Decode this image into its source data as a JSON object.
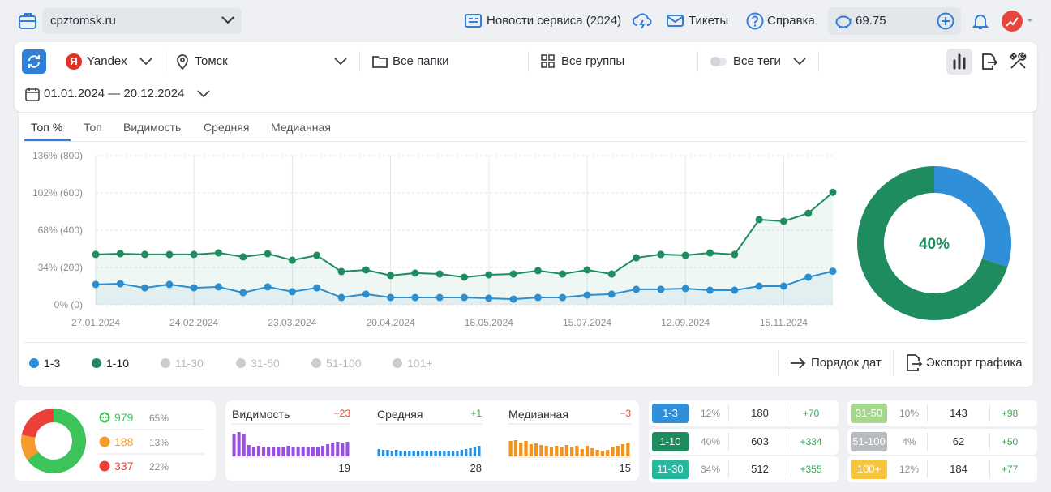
{
  "header": {
    "site": "cpztomsk.ru",
    "news": "Новости сервиса (2024)",
    "tickets": "Тикеты",
    "help": "Справка",
    "balance": "69.75"
  },
  "filters": {
    "engine_icon": "Я",
    "engine": "Yandex",
    "region": "Томск",
    "folders": "Все папки",
    "groups": "Все группы",
    "tags": "Все теги",
    "period": "01.01.2024 — 20.12.2024"
  },
  "tabs": [
    "Топ %",
    "Топ",
    "Видимость",
    "Средняя",
    "Медианная"
  ],
  "chart_data": {
    "type": "line",
    "categories": [
      "27.01.2024",
      null,
      null,
      null,
      "24.02.2024",
      null,
      null,
      null,
      "23.03.2024",
      null,
      null,
      null,
      "20.04.2024",
      null,
      null,
      null,
      "18.05.2024",
      null,
      null,
      null,
      "15.07.2024",
      null,
      null,
      null,
      "12.09.2024",
      null,
      null,
      null,
      "15.11.2024",
      null,
      null
    ],
    "series": [
      {
        "name": "1-3",
        "color": "#2f8fd8",
        "values": [
          109,
          113,
          91,
          109,
          91,
          96,
          65,
          96,
          70,
          91,
          39,
          57,
          39,
          39,
          39,
          39,
          35,
          30,
          39,
          39,
          52,
          57,
          83,
          83,
          87,
          78,
          78,
          100,
          100,
          148,
          180
        ]
      },
      {
        "name": "1-10",
        "color": "#1e8c5f",
        "values": [
          270,
          274,
          270,
          270,
          270,
          278,
          257,
          274,
          239,
          265,
          178,
          187,
          157,
          170,
          165,
          148,
          161,
          165,
          183,
          165,
          187,
          165,
          252,
          270,
          265,
          278,
          270,
          457,
          448,
          491,
          603
        ]
      }
    ],
    "legend_inactive": [
      "11-30",
      "31-50",
      "51-100",
      "101+"
    ],
    "ylim": [
      0,
      800
    ],
    "yticks": [
      {
        "value": 0,
        "label": "0% (0)"
      },
      {
        "value": 200,
        "label": "34% (200)"
      },
      {
        "value": 400,
        "label": "68% (400)"
      },
      {
        "value": 600,
        "label": "102% (600)"
      },
      {
        "value": 800,
        "label": "136% (800)"
      }
    ],
    "grid": true
  },
  "donut": {
    "label": "40%",
    "values": [
      30,
      70
    ],
    "colors": [
      "#2f8fd8",
      "#1e8c5f"
    ]
  },
  "actions": [
    "Порядок дат",
    "Экспорт графика"
  ],
  "summary": {
    "values": [
      979,
      188,
      337
    ],
    "shares": [
      65,
      13,
      22
    ],
    "share_labels": [
      "65%",
      "13%",
      "22%"
    ],
    "colors": [
      "#3cc35a",
      "#f59a2c",
      "#ec3f3a"
    ]
  },
  "metrics": [
    {
      "title": "Видимость",
      "change": -23,
      "change_label": "−23",
      "value": 19,
      "color": "#9b4fe0",
      "bars": [
        28,
        30,
        27,
        14,
        11,
        13,
        12,
        12,
        11,
        12,
        12,
        13,
        11,
        12,
        12,
        12,
        12,
        11,
        13,
        15,
        17,
        18,
        16,
        18
      ]
    },
    {
      "title": "Средняя",
      "change": 1,
      "change_label": "+1",
      "value": 28,
      "color": "#2f8fd8",
      "bars": [
        9,
        8,
        8,
        7,
        8,
        7,
        7,
        7,
        7,
        7,
        7,
        7,
        7,
        7,
        7,
        7,
        7,
        7,
        7,
        8,
        9,
        10,
        11,
        13
      ]
    },
    {
      "title": "Медианная",
      "change": -3,
      "change_label": "−3",
      "value": 15,
      "color": "#ef9420",
      "bars": [
        19,
        20,
        17,
        19,
        15,
        16,
        14,
        13,
        11,
        13,
        12,
        14,
        12,
        13,
        9,
        13,
        10,
        8,
        7,
        8,
        11,
        13,
        15,
        17
      ]
    }
  ],
  "positions": [
    {
      "range": "1-3",
      "share": "12%",
      "count": 180,
      "change": "+70",
      "color": "#2f8fd8"
    },
    {
      "range": "1-10",
      "share": "40%",
      "count": 603,
      "change": "+334",
      "color": "#1e8c5f"
    },
    {
      "range": "11-30",
      "share": "34%",
      "count": 512,
      "change": "+355",
      "color": "#25b89d"
    },
    {
      "range": "31-50",
      "share": "10%",
      "count": 143,
      "change": "+98",
      "color": "#a5d88c"
    },
    {
      "range": "51-100",
      "share": "4%",
      "count": 62,
      "change": "+50",
      "color": "#b8bbbf"
    },
    {
      "range": "100+",
      "share": "12%",
      "count": 184,
      "change": "+77",
      "color": "#f6c53c"
    }
  ]
}
